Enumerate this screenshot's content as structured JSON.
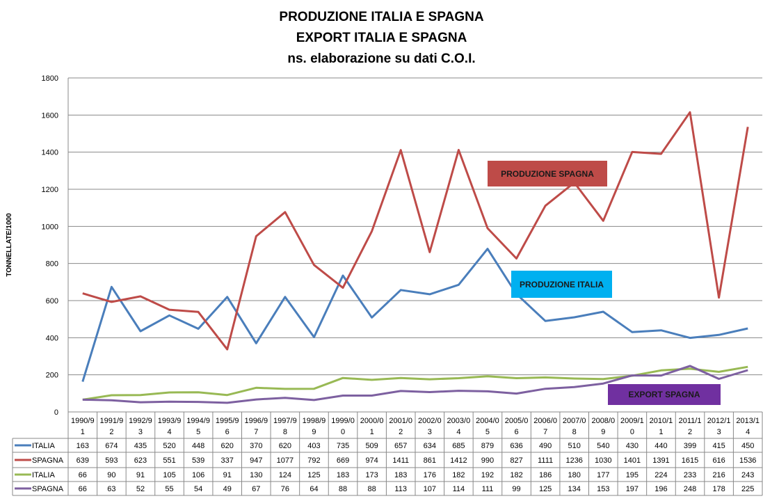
{
  "chart_data": {
    "type": "line",
    "title": [
      "PRODUZIONE ITALIA E SPAGNA",
      "EXPORT ITALIA E SPAGNA",
      "ns. elaborazione su dati C.O.I."
    ],
    "ylabel": "TONNELLATE/1000",
    "ylim": [
      0,
      1800
    ],
    "yticks": [
      0,
      200,
      400,
      600,
      800,
      1000,
      1200,
      1400,
      1600,
      1800
    ],
    "grid": true,
    "categories": [
      [
        "1990/9",
        "1"
      ],
      [
        "1991/9",
        "2"
      ],
      [
        "1992/9",
        "3"
      ],
      [
        "1993/9",
        "4"
      ],
      [
        "1994/9",
        "5"
      ],
      [
        "1995/9",
        "6"
      ],
      [
        "1996/9",
        "7"
      ],
      [
        "1997/9",
        "8"
      ],
      [
        "1998/9",
        "9"
      ],
      [
        "1999/0",
        "0"
      ],
      [
        "2000/0",
        "1"
      ],
      [
        "2001/0",
        "2"
      ],
      [
        "2002/0",
        "3"
      ],
      [
        "2003/0",
        "4"
      ],
      [
        "2004/0",
        "5"
      ],
      [
        "2005/0",
        "6"
      ],
      [
        "2006/0",
        "7"
      ],
      [
        "2007/0",
        "8"
      ],
      [
        "2008/0",
        "9"
      ],
      [
        "2009/1",
        "0"
      ],
      [
        "2010/1",
        "1"
      ],
      [
        "2011/1",
        "2"
      ],
      [
        "2012/1",
        "3"
      ],
      [
        "2013/1",
        "4"
      ]
    ],
    "series": [
      {
        "name": "ITALIA",
        "color": "#4a7ebb",
        "values": [
          163,
          674,
          435,
          520,
          448,
          620,
          370,
          620,
          403,
          735,
          509,
          657,
          634,
          685,
          879,
          636,
          490,
          510,
          540,
          430,
          440,
          399,
          415,
          450
        ]
      },
      {
        "name": "SPAGNA",
        "color": "#be4b48",
        "values": [
          639,
          593,
          623,
          551,
          539,
          337,
          947,
          1077,
          792,
          669,
          974,
          1411,
          861,
          1412,
          990,
          827,
          1111,
          1236,
          1030,
          1401,
          1391,
          1615,
          616,
          1536
        ]
      },
      {
        "name": "ITALIA",
        "color": "#98b954",
        "values": [
          66,
          90,
          91,
          105,
          106,
          91,
          130,
          124,
          125,
          183,
          173,
          183,
          176,
          182,
          192,
          182,
          186,
          180,
          177,
          195,
          224,
          233,
          216,
          243
        ]
      },
      {
        "name": "SPAGNA",
        "color": "#7d60a0",
        "values": [
          66,
          63,
          52,
          55,
          54,
          49,
          67,
          76,
          64,
          88,
          88,
          113,
          107,
          114,
          111,
          99,
          125,
          134,
          153,
          197,
          196,
          248,
          178,
          225
        ]
      }
    ],
    "annotations": [
      {
        "text": "PRODUZIONE SPAGNA",
        "color": "#be4b48",
        "textColor": "#1a1a1a"
      },
      {
        "text": "PRODUZIONE ITALIA",
        "color": "#00b0f0",
        "textColor": "#1a1a1a"
      },
      {
        "text": "EXPORT SPAGNA",
        "color": "#7030a0",
        "textColor": "#1a1a1a"
      }
    ]
  }
}
